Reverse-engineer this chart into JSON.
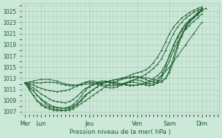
{
  "background_color": "#cce8d8",
  "plot_bg_color": "#cce8d8",
  "line_color": "#1a5c2a",
  "grid_color": "#a8c8b8",
  "ylim": [
    1006.5,
    1026.5
  ],
  "yticks": [
    1007,
    1009,
    1011,
    1013,
    1015,
    1017,
    1019,
    1021,
    1023,
    1025
  ],
  "xlabel": "Pression niveau de la mer( hPa )",
  "xlabel_color": "#1a5c2a",
  "tick_color": "#1a5c2a",
  "day_labels": [
    "Mer",
    "Lun",
    "Jeu",
    "Ven",
    "Sam",
    "Dim"
  ],
  "day_positions": [
    0,
    24,
    96,
    168,
    216,
    264
  ],
  "xlim": [
    -5,
    290
  ],
  "xtick_minor_step": 6,
  "figsize": [
    3.2,
    2.0
  ],
  "dpi": 100,
  "lines": [
    [
      0,
      1012.2,
      6,
      1011.0,
      12,
      1010.0,
      18,
      1009.0,
      24,
      1008.5,
      30,
      1008.0,
      36,
      1007.8,
      42,
      1007.5,
      48,
      1007.4,
      54,
      1007.3,
      60,
      1007.2,
      66,
      1007.3,
      72,
      1007.5,
      78,
      1008.0,
      84,
      1008.5,
      90,
      1009.0,
      96,
      1009.5,
      102,
      1010.0,
      108,
      1010.5,
      114,
      1011.0,
      120,
      1011.5,
      126,
      1012.0,
      132,
      1012.3,
      138,
      1012.5,
      144,
      1012.8,
      150,
      1013.0,
      156,
      1013.2,
      162,
      1013.3,
      168,
      1013.3,
      174,
      1013.2,
      180,
      1013.1,
      186,
      1013.0,
      192,
      1012.8,
      198,
      1012.6,
      204,
      1012.5,
      210,
      1013.0,
      216,
      1014.0,
      222,
      1016.0,
      228,
      1018.5,
      234,
      1020.5,
      240,
      1022.0,
      246,
      1023.0,
      252,
      1023.8,
      258,
      1024.3,
      264,
      1025.2,
      270,
      1025.5
    ],
    [
      0,
      1012.2,
      6,
      1011.5,
      12,
      1010.8,
      18,
      1010.0,
      24,
      1009.3,
      30,
      1008.8,
      36,
      1008.3,
      42,
      1008.0,
      48,
      1007.8,
      54,
      1007.7,
      60,
      1007.6,
      66,
      1007.7,
      72,
      1008.0,
      78,
      1008.5,
      84,
      1009.2,
      90,
      1010.0,
      96,
      1010.5,
      102,
      1011.0,
      108,
      1011.5,
      114,
      1012.0,
      120,
      1012.3,
      126,
      1012.5,
      132,
      1012.7,
      138,
      1012.8,
      144,
      1013.0,
      150,
      1013.0,
      156,
      1013.1,
      162,
      1013.2,
      168,
      1013.2,
      174,
      1013.0,
      180,
      1012.8,
      186,
      1012.5,
      192,
      1012.3,
      198,
      1012.2,
      204,
      1012.3,
      210,
      1013.0,
      216,
      1014.5,
      222,
      1016.8,
      228,
      1019.0,
      234,
      1020.8,
      240,
      1022.2,
      246,
      1023.2,
      252,
      1024.0,
      258,
      1024.8,
      264,
      1025.3
    ],
    [
      0,
      1012.2,
      6,
      1011.8,
      12,
      1011.3,
      18,
      1010.8,
      24,
      1010.2,
      30,
      1009.8,
      36,
      1009.3,
      42,
      1009.0,
      48,
      1008.8,
      54,
      1008.7,
      60,
      1008.6,
      66,
      1008.8,
      72,
      1009.2,
      78,
      1009.8,
      84,
      1010.5,
      90,
      1011.2,
      96,
      1011.5,
      102,
      1011.8,
      108,
      1012.0,
      114,
      1012.2,
      120,
      1012.3,
      126,
      1012.3,
      132,
      1012.3,
      138,
      1012.2,
      144,
      1012.0,
      150,
      1011.8,
      156,
      1011.7,
      162,
      1011.7,
      168,
      1011.8,
      174,
      1012.0,
      180,
      1012.3,
      186,
      1012.5,
      192,
      1013.0,
      198,
      1013.5,
      204,
      1014.2,
      210,
      1015.5,
      216,
      1017.0,
      222,
      1018.8,
      228,
      1020.3,
      234,
      1021.5,
      240,
      1022.5,
      246,
      1023.3,
      252,
      1024.0,
      258,
      1024.6,
      264,
      1025.0
    ],
    [
      0,
      1012.2,
      6,
      1012.0,
      12,
      1011.8,
      18,
      1011.5,
      24,
      1011.2,
      30,
      1011.0,
      36,
      1010.8,
      42,
      1010.7,
      48,
      1010.6,
      54,
      1010.7,
      60,
      1010.8,
      66,
      1011.0,
      72,
      1011.3,
      78,
      1011.6,
      84,
      1012.0,
      90,
      1012.3,
      96,
      1012.5,
      102,
      1012.5,
      108,
      1012.3,
      114,
      1012.0,
      120,
      1011.8,
      126,
      1011.7,
      132,
      1011.7,
      138,
      1011.8,
      144,
      1012.0,
      150,
      1012.2,
      156,
      1012.3,
      162,
      1012.3,
      168,
      1012.2,
      174,
      1012.0,
      180,
      1011.8,
      186,
      1011.7,
      192,
      1011.8,
      198,
      1012.2,
      204,
      1013.0,
      210,
      1014.5,
      216,
      1016.2,
      222,
      1018.0,
      228,
      1019.5,
      234,
      1020.8,
      240,
      1021.8,
      246,
      1022.5,
      252,
      1023.2,
      258,
      1023.8,
      264,
      1024.5
    ],
    [
      0,
      1012.2,
      6,
      1012.2,
      12,
      1012.2,
      18,
      1012.2,
      24,
      1012.2,
      30,
      1012.3,
      36,
      1012.3,
      42,
      1012.3,
      48,
      1012.2,
      54,
      1012.0,
      60,
      1011.8,
      66,
      1011.7,
      72,
      1011.7,
      78,
      1011.8,
      84,
      1012.0,
      90,
      1012.2,
      96,
      1012.3,
      102,
      1012.2,
      108,
      1012.0,
      114,
      1011.7,
      120,
      1011.5,
      126,
      1011.3,
      132,
      1011.3,
      138,
      1011.5,
      144,
      1011.8,
      150,
      1012.2,
      156,
      1012.5,
      162,
      1012.7,
      168,
      1012.7,
      174,
      1012.5,
      180,
      1012.2,
      186,
      1012.0,
      192,
      1012.0,
      198,
      1012.5,
      204,
      1013.5,
      210,
      1015.2,
      216,
      1017.2,
      222,
      1019.0,
      228,
      1020.5,
      234,
      1021.8,
      240,
      1022.8,
      246,
      1023.5,
      252,
      1024.0,
      258,
      1024.5,
      264,
      1025.5
    ],
    [
      0,
      1012.2,
      12,
      1012.5,
      24,
      1012.8,
      36,
      1012.8,
      48,
      1012.5,
      60,
      1012.0,
      72,
      1011.8,
      84,
      1011.8,
      96,
      1012.0,
      108,
      1012.2,
      120,
      1012.3,
      132,
      1012.2,
      144,
      1012.0,
      156,
      1011.8,
      168,
      1011.8,
      180,
      1012.0,
      192,
      1012.5,
      204,
      1013.5,
      216,
      1015.0,
      228,
      1017.0,
      240,
      1019.0,
      252,
      1021.0,
      264,
      1023.0
    ],
    [
      0,
      1012.2,
      6,
      1011.5,
      12,
      1010.8,
      18,
      1010.0,
      24,
      1009.2,
      30,
      1008.5,
      36,
      1008.0,
      42,
      1007.8,
      48,
      1007.7,
      54,
      1007.6,
      60,
      1007.7,
      66,
      1007.9,
      72,
      1008.3,
      78,
      1009.0,
      84,
      1009.8,
      90,
      1010.8,
      96,
      1011.5,
      102,
      1012.0,
      108,
      1012.3,
      114,
      1012.5,
      120,
      1012.5,
      126,
      1012.3,
      132,
      1012.0,
      138,
      1011.8,
      144,
      1011.8,
      150,
      1012.0,
      156,
      1012.3,
      162,
      1012.7,
      168,
      1013.0,
      174,
      1013.3,
      180,
      1013.7,
      186,
      1014.2,
      192,
      1014.8,
      198,
      1015.5,
      204,
      1016.5,
      210,
      1018.0,
      216,
      1019.5,
      222,
      1021.0,
      228,
      1022.2,
      234,
      1023.0,
      240,
      1023.8,
      246,
      1024.3,
      252,
      1024.8,
      258,
      1025.2,
      264,
      1025.5
    ],
    [
      0,
      1012.2,
      6,
      1011.2,
      12,
      1010.0,
      18,
      1009.0,
      24,
      1008.2,
      30,
      1007.8,
      36,
      1007.5,
      42,
      1007.3,
      48,
      1007.2,
      54,
      1007.2,
      60,
      1007.3,
      66,
      1007.5,
      72,
      1007.8,
      78,
      1008.3,
      84,
      1009.0,
      90,
      1009.8,
      96,
      1010.5,
      102,
      1011.0,
      108,
      1011.5,
      114,
      1012.0,
      120,
      1012.3,
      126,
      1012.5,
      132,
      1012.7,
      138,
      1012.8,
      144,
      1013.0,
      150,
      1013.2,
      156,
      1013.5,
      162,
      1013.8,
      168,
      1014.0,
      174,
      1014.2,
      180,
      1014.5,
      186,
      1015.0,
      192,
      1015.8,
      198,
      1016.8,
      204,
      1018.0,
      210,
      1019.5,
      216,
      1021.0,
      222,
      1022.2,
      228,
      1023.0,
      234,
      1023.8,
      240,
      1024.3,
      246,
      1024.8,
      252,
      1025.2,
      258,
      1025.5,
      264,
      1025.8
    ]
  ]
}
